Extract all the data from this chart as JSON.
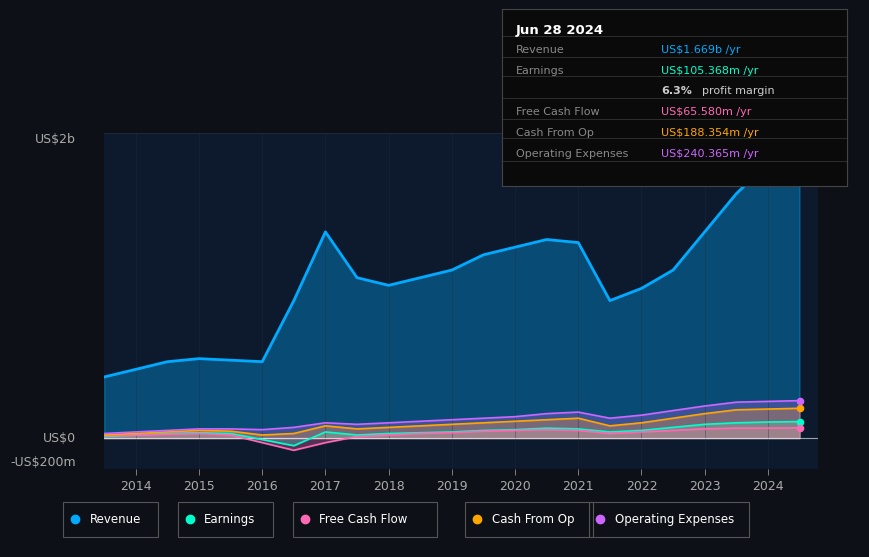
{
  "bg_color": "#0d1117",
  "plot_bg_color": "#0d1a2e",
  "title_box_date": "Jun 28 2024",
  "years": [
    2013.5,
    2014.0,
    2014.5,
    2015.0,
    2015.5,
    2016.0,
    2016.5,
    2017.0,
    2017.5,
    2018.0,
    2018.5,
    2019.0,
    2019.5,
    2020.0,
    2020.5,
    2021.0,
    2021.5,
    2022.0,
    2022.5,
    2023.0,
    2023.5,
    2024.0,
    2024.5
  ],
  "revenue": [
    400,
    450,
    500,
    520,
    510,
    500,
    900,
    1350,
    1050,
    1000,
    1050,
    1100,
    1200,
    1250,
    1300,
    1280,
    900,
    980,
    1100,
    1350,
    1600,
    1800,
    1900
  ],
  "earnings": [
    10,
    20,
    30,
    35,
    30,
    -10,
    -50,
    40,
    20,
    30,
    35,
    40,
    50,
    55,
    65,
    60,
    40,
    50,
    70,
    90,
    100,
    105,
    108
  ],
  "free_cash_flow": [
    15,
    20,
    25,
    30,
    20,
    -30,
    -80,
    -30,
    10,
    20,
    30,
    35,
    45,
    50,
    55,
    50,
    30,
    40,
    50,
    60,
    65,
    65,
    67
  ],
  "cash_from_op": [
    20,
    30,
    40,
    50,
    45,
    20,
    30,
    80,
    60,
    70,
    80,
    90,
    100,
    110,
    120,
    130,
    80,
    100,
    130,
    160,
    185,
    190,
    195
  ],
  "operating_expenses": [
    30,
    40,
    50,
    60,
    60,
    55,
    70,
    100,
    90,
    100,
    110,
    120,
    130,
    140,
    160,
    170,
    130,
    150,
    180,
    210,
    235,
    240,
    245
  ],
  "revenue_color": "#00aaff",
  "earnings_color": "#00ffcc",
  "free_cash_flow_color": "#ff69b4",
  "cash_from_op_color": "#ffa500",
  "operating_expenses_color": "#cc66ff",
  "ylabel_top": "US$2b",
  "ylabel_zero": "US$0",
  "ylabel_neg": "-US$200m",
  "xlim": [
    2013.5,
    2024.8
  ],
  "ylim": [
    -200,
    2000
  ],
  "xticks": [
    2014,
    2015,
    2016,
    2017,
    2018,
    2019,
    2020,
    2021,
    2022,
    2023,
    2024
  ],
  "grid_color": "#1e2d40",
  "zero_line_color": "#ffffff",
  "legend_items": [
    "Revenue",
    "Earnings",
    "Free Cash Flow",
    "Cash From Op",
    "Operating Expenses"
  ],
  "legend_colors": [
    "#00aaff",
    "#00ffcc",
    "#ff69b4",
    "#ffa500",
    "#cc66ff"
  ],
  "box_row_labels": [
    "Revenue",
    "Earnings",
    "",
    "Free Cash Flow",
    "Cash From Op",
    "Operating Expenses"
  ],
  "box_row_values": [
    "US$1.669b /yr",
    "US$105.368m /yr",
    "6.3% profit margin",
    "US$65.580m /yr",
    "US$188.354m /yr",
    "US$240.365m /yr"
  ],
  "box_row_colors": [
    "#00aaff",
    "#00ffcc",
    "#aaaaaa",
    "#ff69b4",
    "#ffa500",
    "#cc66ff"
  ]
}
